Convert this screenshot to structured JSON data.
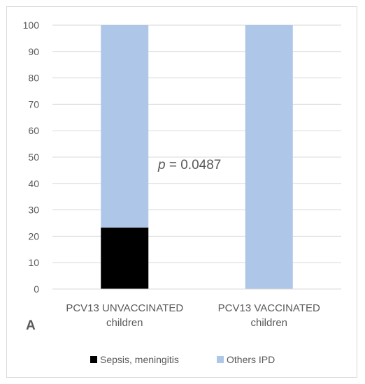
{
  "chart_data": {
    "type": "bar",
    "stacked": true,
    "categories": [
      "PCV13 UNVACCINATED children",
      "PCV13 VACCINATED children"
    ],
    "category_lines": [
      [
        "PCV13 UNVACCINATED",
        "children"
      ],
      [
        "PCV13 VACCINATED",
        "children"
      ]
    ],
    "series": [
      {
        "name": "Sepsis, meningitis",
        "color": "#000000",
        "values": [
          23.3,
          0
        ]
      },
      {
        "name": "Others IPD",
        "color": "#aec7e8",
        "values": [
          76.7,
          100
        ]
      }
    ],
    "ylim": [
      0,
      100
    ],
    "yticks": [
      0,
      10,
      20,
      30,
      40,
      50,
      60,
      70,
      80,
      90,
      100
    ],
    "grid": true,
    "legend_position": "bottom",
    "annotation": {
      "italic": "p",
      "text": " = 0.0487"
    },
    "panel_label": "A"
  }
}
